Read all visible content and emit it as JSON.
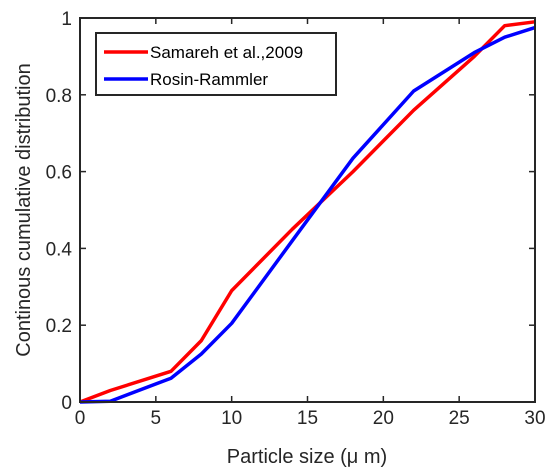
{
  "chart_data": {
    "type": "line",
    "title": "",
    "xlabel": "Particle size (μ m)",
    "ylabel": "Continous cumulative distribution",
    "xlim": [
      0,
      30
    ],
    "ylim": [
      0,
      1
    ],
    "xticks": [
      0,
      5,
      10,
      15,
      20,
      25,
      30
    ],
    "yticks": [
      0,
      0.2,
      0.4,
      0.6,
      0.8,
      1
    ],
    "xtick_labels": [
      "0",
      "5",
      "10",
      "15",
      "20",
      "25",
      "30"
    ],
    "ytick_labels": [
      "0",
      "0.2",
      "0.4",
      "0.6",
      "0.8",
      "1"
    ],
    "grid": false,
    "legend_position": "top-left",
    "series": [
      {
        "name": "Samareh et al.,2009",
        "color": "#ff0000",
        "x": [
          0,
          2,
          6,
          8,
          10,
          14,
          18,
          22,
          26,
          28,
          30
        ],
        "y": [
          0,
          0.03,
          0.08,
          0.16,
          0.29,
          0.45,
          0.6,
          0.76,
          0.9,
          0.98,
          0.99
        ]
      },
      {
        "name": "Rosin-Rammler",
        "color": "#0000ff",
        "x": [
          0,
          2,
          6,
          8,
          10,
          14,
          18,
          22,
          26,
          28,
          30
        ],
        "y": [
          0,
          0.002,
          0.062,
          0.125,
          0.205,
          0.42,
          0.635,
          0.81,
          0.91,
          0.95,
          0.975
        ]
      }
    ]
  }
}
